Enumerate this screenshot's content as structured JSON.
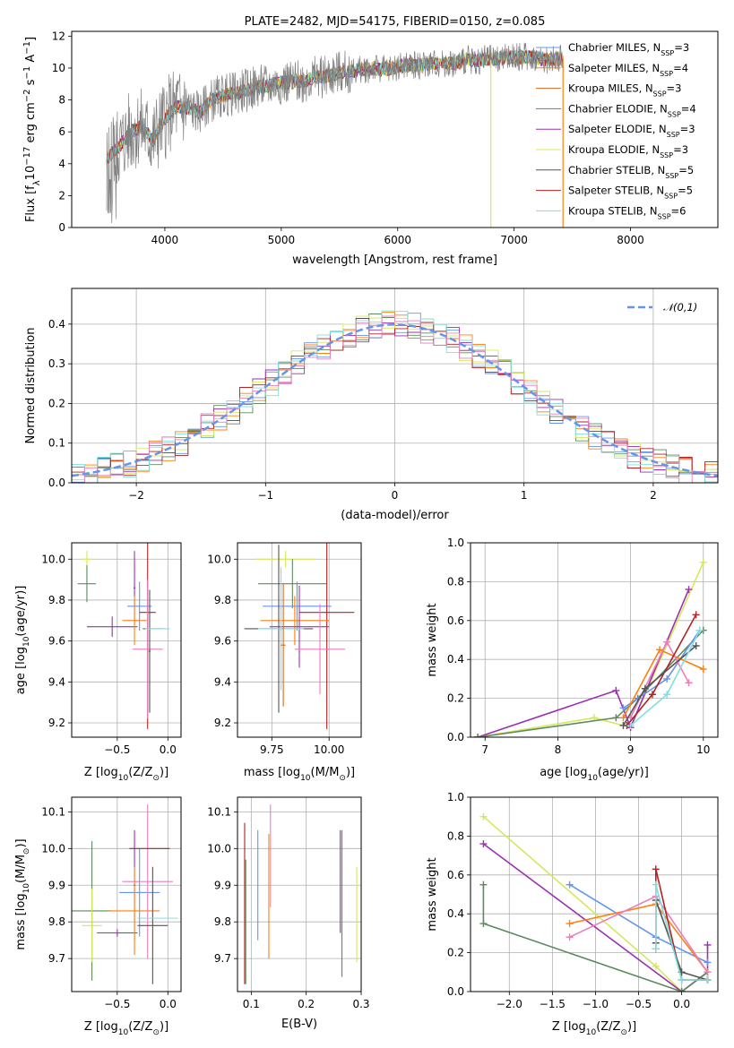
{
  "colors": {
    "Chabrier MILES": "#6495ed",
    "Salpeter MILES": "#ff7f0e",
    "Kroupa MILES": "#d2691e",
    "Chabrier ELODIE": "#5f8a5f",
    "Salpeter ELODIE": "#9b30b0",
    "Kroupa ELODIE": "#d4e85a",
    "Chabrier STELIB": "#555555",
    "Salpeter STELIB": "#b22222",
    "Kroupa STELIB": "#7fdfdf",
    "pink": "#e87fbf",
    "gauss": "#6495ed"
  },
  "chart_data": [
    {
      "id": "spectrum",
      "type": "line",
      "title": "PLATE=2482, MJD=54175, FIBERID=0150, z=0.085",
      "xlabel": "wavelength [Angstrom, rest frame]",
      "ylabel_main": "Flux [f",
      "ylabel_sub": "λ",
      "ylabel_rest": "10",
      "ylabel_exp": "−17",
      "ylabel_units": " erg cm",
      "ylabel_exp2": "−2",
      "ylabel_s": " s",
      "ylabel_exp3": "−1",
      "ylabel_A": " A",
      "ylabel_exp4": "−1",
      "ylabel_end": "]",
      "xlim": [
        3200,
        8750
      ],
      "ylim": [
        0,
        12.3
      ],
      "xticks": [
        4000,
        5000,
        6000,
        7000,
        8000
      ],
      "yticks": [
        0,
        2,
        4,
        6,
        8,
        10,
        12
      ],
      "legend": [
        {
          "name": "Chabrier MILES",
          "nssp": "3"
        },
        {
          "name": "Salpeter MILES",
          "nssp": "4"
        },
        {
          "name": "Kroupa MILES",
          "nssp": "3"
        },
        {
          "name": "Chabrier ELODIE",
          "nssp": "4"
        },
        {
          "name": "Salpeter ELODIE",
          "nssp": "3"
        },
        {
          "name": "Kroupa ELODIE",
          "nssp": "3"
        },
        {
          "name": "Chabrier STELIB",
          "nssp": "5"
        },
        {
          "name": "Salpeter STELIB",
          "nssp": "5"
        },
        {
          "name": "Kroupa STELIB",
          "nssp": "6"
        }
      ],
      "legend_prefix": "N",
      "legend_sub": "SSP",
      "legend_placement": "right",
      "continuum": [
        [
          3500,
          4.3
        ],
        [
          3600,
          5.0
        ],
        [
          3700,
          6.0
        ],
        [
          3800,
          6.3
        ],
        [
          3900,
          5.5
        ],
        [
          4000,
          6.8
        ],
        [
          4100,
          7.6
        ],
        [
          4200,
          7.5
        ],
        [
          4300,
          7.2
        ],
        [
          4400,
          8.0
        ],
        [
          4500,
          8.3
        ],
        [
          4600,
          8.4
        ],
        [
          4700,
          8.6
        ],
        [
          4800,
          8.8
        ],
        [
          4900,
          8.9
        ],
        [
          5000,
          9.1
        ],
        [
          5100,
          9.1
        ],
        [
          5200,
          9.2
        ],
        [
          5300,
          9.4
        ],
        [
          5400,
          9.5
        ],
        [
          5500,
          9.7
        ],
        [
          5600,
          9.8
        ],
        [
          5700,
          9.9
        ],
        [
          5800,
          10.0
        ],
        [
          5900,
          9.9
        ],
        [
          6000,
          10.1
        ],
        [
          6100,
          10.2
        ],
        [
          6200,
          10.2
        ],
        [
          6300,
          10.3
        ],
        [
          6400,
          10.3
        ],
        [
          6500,
          10.3
        ],
        [
          6600,
          10.5
        ],
        [
          6700,
          10.5
        ],
        [
          6800,
          10.6
        ],
        [
          6900,
          10.6
        ],
        [
          7000,
          10.7
        ],
        [
          7100,
          10.7
        ],
        [
          7200,
          10.6
        ],
        [
          7300,
          10.5
        ],
        [
          7400,
          10.6
        ]
      ]
    },
    {
      "id": "residuals",
      "type": "histogram",
      "xlabel": "(data-model)/error",
      "ylabel": "Normed distribution",
      "xlim": [
        -2.5,
        2.5
      ],
      "ylim": [
        0,
        0.49
      ],
      "xticks": [
        -2,
        -1,
        0,
        1,
        2
      ],
      "yticks": [
        0.0,
        0.1,
        0.2,
        0.3,
        0.4
      ],
      "grid": true,
      "legend": "𝒩(0,1)",
      "legend_placement": "top-right",
      "bin_width": 0.1
    },
    {
      "id": "z_age",
      "type": "errorbar",
      "xlabel": "Z [log",
      "xlabel_sub": "10",
      "xlabel_rest": "(Z/Z",
      "xlabel_sun": "⊙",
      "xlabel_end": ")]",
      "ylabel": "age  [log",
      "ylabel_sub": "10",
      "ylabel_rest": "(age/yr)]",
      "xlim": [
        -0.95,
        0.13
      ],
      "ylim": [
        9.13,
        10.08
      ],
      "xticks": [
        -0.5,
        0.0
      ],
      "yticks": [
        9.2,
        9.4,
        9.6,
        9.8,
        10.0
      ],
      "points": [
        {
          "c": "Kroupa ELODIE",
          "x": -0.8,
          "xe": 0.05,
          "y": 10.0,
          "ye": 0.04
        },
        {
          "c": "Chabrier ELODIE",
          "x": -0.8,
          "xe": 0.09,
          "y": 9.88,
          "ye": 0.09
        },
        {
          "c": "Salpeter ELODIE",
          "x": -0.55,
          "xe": 0.25,
          "y": 9.67,
          "ye": 0.05
        },
        {
          "c": "Salpeter ELODIE",
          "x": -0.33,
          "xe": 0.01,
          "y": 9.86,
          "ye": 0.18
        },
        {
          "c": "Chabrier MILES",
          "x": -0.28,
          "xe": 0.12,
          "y": 9.77,
          "ye": 0.12
        },
        {
          "c": "Salpeter MILES",
          "x": -0.33,
          "xe": 0.12,
          "y": 9.7,
          "ye": 0.12
        },
        {
          "c": "Salpeter STELIB",
          "x": -0.2,
          "xe": 0.08,
          "y": 9.74,
          "ye": 0.57
        },
        {
          "c": "pink",
          "x": -0.2,
          "xe": 0.15,
          "y": 9.56,
          "ye": 0.34
        },
        {
          "c": "Chabrier STELIB",
          "x": -0.18,
          "xe": 0.01,
          "y": 9.55,
          "ye": 0.3
        },
        {
          "c": "Chabrier ELODIE",
          "x": -0.15,
          "xe": 0.1,
          "y": 9.66,
          "ye": 0.0
        },
        {
          "c": "Kroupa STELIB",
          "x": -0.1,
          "xe": 0.12,
          "y": 9.66,
          "ye": 0.0
        }
      ]
    },
    {
      "id": "mass_age",
      "type": "errorbar",
      "xlabel": "mass [log",
      "xlabel_sub": "10",
      "xlabel_rest": "(M/M",
      "xlabel_sun": "⊙",
      "xlabel_end": ")]",
      "xlim": [
        9.6,
        10.14
      ],
      "ylim": [
        9.13,
        10.08
      ],
      "xticks": [
        9.75,
        10.0
      ],
      "yticks": [
        9.2,
        9.4,
        9.6,
        9.8,
        10.0
      ],
      "points": [
        {
          "c": "Kroupa ELODIE",
          "x": 9.81,
          "xe": 0.13,
          "y": 10.0,
          "ye": 0.04
        },
        {
          "c": "Chabrier ELODIE",
          "x": 9.84,
          "xe": 0.15,
          "y": 9.88,
          "ye": 0.12
        },
        {
          "c": "Chabrier MILES",
          "x": 9.86,
          "xe": 0.15,
          "y": 9.77,
          "ye": 0.12
        },
        {
          "c": "Salpeter STELIB",
          "x": 9.99,
          "xe": 0.12,
          "y": 9.74,
          "ye": 0.57
        },
        {
          "c": "Salpeter MILES",
          "x": 9.85,
          "xe": 0.15,
          "y": 9.7,
          "ye": 0.12
        },
        {
          "c": "Salpeter ELODIE",
          "x": 9.87,
          "xe": 0.13,
          "y": 9.67,
          "ye": 0.2
        },
        {
          "c": "Chabrier STELIB",
          "x": 9.78,
          "xe": 0.15,
          "y": 9.66,
          "ye": 0.41
        },
        {
          "c": "Kroupa STELIB",
          "x": 9.79,
          "xe": 0.1,
          "y": 9.66,
          "ye": 0.3
        },
        {
          "c": "pink",
          "x": 9.96,
          "xe": 0.11,
          "y": 9.56,
          "ye": 0.22
        },
        {
          "c": "Kroupa MILES",
          "x": 9.8,
          "xe": 0.01,
          "y": 9.58,
          "ye": 0.3
        }
      ]
    },
    {
      "id": "age_weight",
      "type": "line",
      "xlabel": "age  [log",
      "xlabel_sub": "10",
      "xlabel_rest": "(age/yr)]",
      "ylabel": "mass weight",
      "xlim": [
        6.8,
        10.2
      ],
      "ylim": [
        0,
        1.0
      ],
      "xticks": [
        7,
        8,
        9,
        10
      ],
      "yticks": [
        0.0,
        0.2,
        0.4,
        0.6,
        0.8,
        1.0
      ],
      "grid": true,
      "series": [
        {
          "c": "Kroupa ELODIE",
          "x": [
            6.9,
            8.5,
            9.0,
            10.0
          ],
          "y": [
            0.0,
            0.1,
            0.05,
            0.9
          ]
        },
        {
          "c": "Salpeter ELODIE",
          "x": [
            6.9,
            8.8,
            9.0,
            9.8
          ],
          "y": [
            0.0,
            0.24,
            0.05,
            0.76
          ]
        },
        {
          "c": "Chabrier ELODIE",
          "x": [
            6.9,
            8.8,
            9.1,
            10.0
          ],
          "y": [
            0.0,
            0.1,
            0.2,
            0.55
          ]
        },
        {
          "c": "Chabrier MILES",
          "x": [
            8.9,
            9.5,
            9.95
          ],
          "y": [
            0.15,
            0.3,
            0.55
          ]
        },
        {
          "c": "Salpeter MILES",
          "x": [
            8.9,
            9.4,
            10.0
          ],
          "y": [
            0.1,
            0.45,
            0.35
          ]
        },
        {
          "c": "pink",
          "x": [
            9.0,
            9.5,
            9.8
          ],
          "y": [
            0.1,
            0.49,
            0.28
          ]
        },
        {
          "c": "Salpeter STELIB",
          "x": [
            8.95,
            9.3,
            9.9
          ],
          "y": [
            0.06,
            0.22,
            0.63
          ]
        },
        {
          "c": "Chabrier STELIB",
          "x": [
            8.9,
            9.2,
            9.9
          ],
          "y": [
            0.06,
            0.25,
            0.47
          ]
        },
        {
          "c": "Kroupa STELIB",
          "x": [
            9.0,
            9.5,
            9.95
          ],
          "y": [
            0.06,
            0.22,
            0.55
          ]
        }
      ]
    },
    {
      "id": "z_mass",
      "type": "errorbar",
      "xlabel": "Z [log",
      "xlabel_sub": "10",
      "xlabel_rest": "(Z/Z",
      "xlabel_sun": "⊙",
      "xlabel_end": ")]",
      "ylabel": "mass [log",
      "ylabel_sub": "10",
      "ylabel_rest": "(M/M",
      "ylabel_sun": "⊙",
      "ylabel_end": ")]",
      "xlim": [
        -0.95,
        0.13
      ],
      "ylim": [
        9.61,
        10.14
      ],
      "xticks": [
        -0.5,
        0.0
      ],
      "yticks": [
        9.7,
        9.8,
        9.9,
        10.0,
        10.1
      ],
      "points": [
        {
          "c": "Chabrier ELODIE",
          "x": -0.75,
          "xe": 0.2,
          "y": 9.83,
          "ye": 0.19
        },
        {
          "c": "Kroupa ELODIE",
          "x": -0.75,
          "xe": 0.1,
          "y": 9.79,
          "ye": 0.1
        },
        {
          "c": "Salpeter ELODIE",
          "x": -0.5,
          "xe": 0.2,
          "y": 9.77,
          "ye": 0.01
        },
        {
          "c": "Salpeter ELODIE",
          "x": -0.33,
          "xe": 0.01,
          "y": 9.9,
          "ye": 0.15
        },
        {
          "c": "Chabrier MILES",
          "x": -0.28,
          "xe": 0.2,
          "y": 9.88,
          "ye": 0.12
        },
        {
          "c": "Salpeter MILES",
          "x": -0.33,
          "xe": 0.25,
          "y": 9.83,
          "ye": 0.12
        },
        {
          "c": "pink",
          "x": -0.2,
          "xe": 0.25,
          "y": 9.91,
          "ye": 0.21
        },
        {
          "c": "Salpeter STELIB",
          "x": -0.18,
          "xe": 0.2,
          "y": 10.0,
          "ye": 0.0
        },
        {
          "c": "Chabrier STELIB",
          "x": -0.15,
          "xe": 0.15,
          "y": 9.79,
          "ye": 0.16
        },
        {
          "c": "Kroupa STELIB",
          "x": -0.1,
          "xe": 0.2,
          "y": 9.81,
          "ye": 0.0
        }
      ]
    },
    {
      "id": "ebv_mass",
      "type": "errorbar",
      "xlabel": "E(B-V)",
      "xlim": [
        0.075,
        0.3
      ],
      "ylim": [
        9.61,
        10.14
      ],
      "xticks": [
        0.1,
        0.2,
        0.3
      ],
      "yticks": [
        9.7,
        9.8,
        9.9,
        10.0,
        10.1
      ],
      "points": [
        {
          "c": "Salpeter STELIB",
          "x": 0.088,
          "xe": 0.0,
          "y": 9.85,
          "ye": 0.22
        },
        {
          "c": "Chabrier ELODIE",
          "x": 0.09,
          "xe": 0.0,
          "y": 9.8,
          "ye": 0.17
        },
        {
          "c": "Chabrier MILES",
          "x": 0.112,
          "xe": 0.0,
          "y": 9.9,
          "ye": 0.15
        },
        {
          "c": "Salpeter MILES",
          "x": 0.132,
          "xe": 0.0,
          "y": 9.87,
          "ye": 0.17
        },
        {
          "c": "pink",
          "x": 0.135,
          "xe": 0.0,
          "y": 9.98,
          "ye": 0.14
        },
        {
          "c": "Salpeter ELODIE",
          "x": 0.262,
          "xe": 0.0,
          "y": 9.91,
          "ye": 0.14
        },
        {
          "c": "Chabrier ELODIE",
          "x": 0.265,
          "xe": 0.0,
          "y": 9.85,
          "ye": 0.2
        },
        {
          "c": "Kroupa ELODIE",
          "x": 0.292,
          "xe": 0.0,
          "y": 9.82,
          "ye": 0.13
        }
      ]
    },
    {
      "id": "z_weight",
      "type": "line",
      "xlabel": "Z [log",
      "xlabel_sub": "10",
      "xlabel_rest": "(Z/Z",
      "xlabel_sun": "⊙",
      "xlabel_end": ")]",
      "ylabel": "mass weight",
      "xlim": [
        -2.45,
        0.42
      ],
      "ylim": [
        0,
        1.0
      ],
      "xticks": [
        -2.0,
        -1.5,
        -1.0,
        -0.5,
        0.0
      ],
      "yticks": [
        0.0,
        0.2,
        0.4,
        0.6,
        0.8,
        1.0
      ],
      "grid": true,
      "series": [
        {
          "c": "Kroupa ELODIE",
          "x": [
            -2.3,
            -0.3,
            0.0,
            0.3
          ],
          "y": [
            0.9,
            0.13,
            0.0,
            0.1
          ]
        },
        {
          "c": "Salpeter ELODIE",
          "x": [
            -2.3,
            0.0,
            0.3,
            0.3
          ],
          "y": [
            0.76,
            0.0,
            0.1,
            0.24
          ]
        },
        {
          "c": "Chabrier ELODIE",
          "x": [
            -2.3,
            -2.3,
            0.0,
            0.3
          ],
          "y": [
            0.55,
            0.35,
            0.0,
            0.1
          ]
        },
        {
          "c": "Chabrier MILES",
          "x": [
            -1.3,
            -0.3,
            0.3
          ],
          "y": [
            0.55,
            0.28,
            0.15
          ]
        },
        {
          "c": "Salpeter MILES",
          "x": [
            -1.3,
            -0.3,
            0.3
          ],
          "y": [
            0.35,
            0.45,
            0.1
          ]
        },
        {
          "c": "pink",
          "x": [
            -1.3,
            -0.3,
            0.3
          ],
          "y": [
            0.28,
            0.49,
            0.1
          ]
        },
        {
          "c": "Salpeter STELIB",
          "x": [
            -0.3,
            -0.3,
            0.0,
            0.3
          ],
          "y": [
            0.22,
            0.63,
            0.06,
            0.06
          ]
        },
        {
          "c": "Chabrier STELIB",
          "x": [
            -0.3,
            -0.3,
            0.0,
            0.3
          ],
          "y": [
            0.25,
            0.47,
            0.1,
            0.06
          ]
        },
        {
          "c": "Kroupa STELIB",
          "x": [
            -0.3,
            -0.3,
            0.0,
            0.3
          ],
          "y": [
            0.22,
            0.55,
            0.06,
            0.06
          ]
        }
      ]
    }
  ]
}
